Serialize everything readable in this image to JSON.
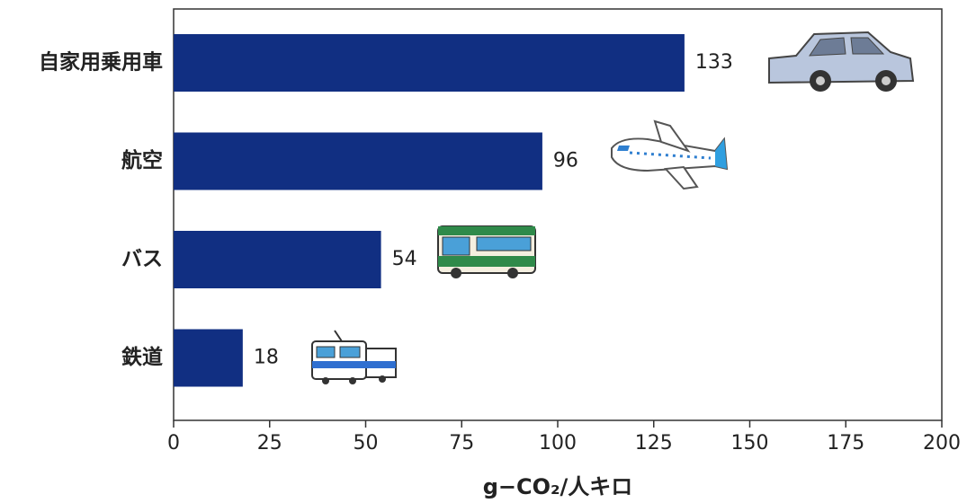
{
  "chart_data": {
    "type": "hbar",
    "categories": [
      "自家用乗用車",
      "航空",
      "バス",
      "鉄道"
    ],
    "values": [
      133,
      96,
      54,
      18
    ],
    "color": "#112f82",
    "xlabel": "g−CO₂/人キロ",
    "xlim": [
      0,
      200
    ],
    "xticks": [
      0,
      25,
      50,
      75,
      100,
      125,
      150,
      175,
      200
    ]
  }
}
